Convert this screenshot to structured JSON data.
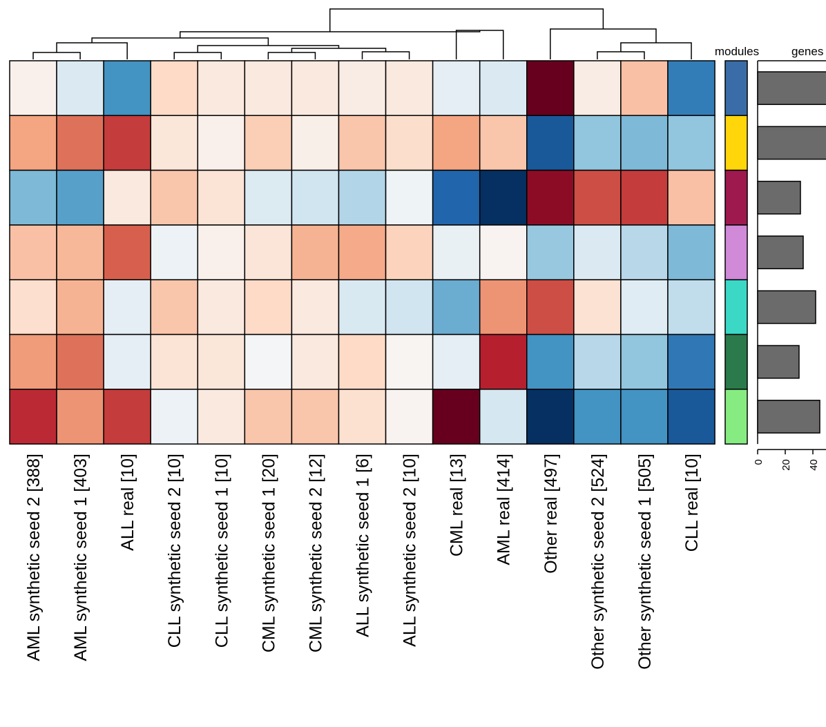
{
  "chart_data": {
    "type": "heatmap",
    "columns": [
      "AML synthetic seed 2  [388]",
      "AML synthetic seed 1  [403]",
      "ALL real  [10]",
      "CLL synthetic seed 2  [10]",
      "CLL synthetic seed 1  [10]",
      "CML synthetic seed 1  [20]",
      "CML synthetic seed 2  [12]",
      "ALL synthetic seed 1  [6]",
      "ALL synthetic seed 2  [10]",
      "CML real  [13]",
      "AML real  [414]",
      "Other real  [497]",
      "Other synthetic seed 2  [524]",
      "Other synthetic seed 1  [505]",
      "CLL real  [10]"
    ],
    "rows": [
      {
        "module_color": "#3A6DA8",
        "gene_count": 51,
        "values": [
          0.05,
          -0.15,
          -0.6,
          0.2,
          0.1,
          0.1,
          0.1,
          0.08,
          0.1,
          -0.1,
          -0.15,
          1.0,
          0.08,
          0.3,
          -0.7
        ]
      },
      {
        "module_color": "#FFD60A",
        "gene_count": 52,
        "values": [
          0.4,
          0.55,
          0.7,
          0.12,
          0.05,
          0.25,
          0.06,
          0.28,
          0.18,
          0.4,
          0.28,
          -0.85,
          -0.4,
          -0.45,
          -0.4
        ]
      },
      {
        "module_color": "#9E1A4E",
        "gene_count": 31,
        "values": [
          -0.45,
          -0.55,
          0.1,
          0.28,
          0.14,
          -0.14,
          -0.2,
          -0.3,
          -0.05,
          -0.8,
          -1.0,
          0.9,
          0.65,
          0.7,
          0.3
        ]
      },
      {
        "module_color": "#D08AD8",
        "gene_count": 33,
        "values": [
          0.3,
          0.33,
          0.6,
          -0.06,
          0.05,
          0.13,
          0.35,
          0.38,
          0.23,
          -0.08,
          0.03,
          -0.38,
          -0.15,
          -0.28,
          -0.45
        ]
      },
      {
        "module_color": "#3BD8C6",
        "gene_count": 42,
        "values": [
          0.17,
          0.35,
          -0.1,
          0.28,
          0.1,
          0.2,
          0.1,
          -0.16,
          -0.2,
          -0.5,
          0.45,
          0.65,
          0.15,
          -0.12,
          -0.25
        ]
      },
      {
        "module_color": "#2A7A4B",
        "gene_count": 30,
        "values": [
          0.43,
          0.55,
          -0.1,
          0.14,
          0.12,
          -0.02,
          0.1,
          0.2,
          0.02,
          -0.1,
          0.78,
          -0.6,
          -0.28,
          -0.4,
          -0.72
        ]
      },
      {
        "module_color": "#86EC82",
        "gene_count": 45,
        "values": [
          0.75,
          0.45,
          0.7,
          -0.06,
          0.1,
          0.28,
          0.28,
          0.16,
          0.03,
          1.0,
          -0.18,
          -1.0,
          -0.6,
          -0.6,
          -0.85
        ]
      }
    ],
    "color_range": [
      -1,
      1
    ],
    "palette": [
      "#053061",
      "#2166AC",
      "#4393C3",
      "#92C5DE",
      "#D1E5F0",
      "#F7F7F7",
      "#FDDBC7",
      "#F4A582",
      "#D6604D",
      "#B2182B",
      "#67001F"
    ],
    "annotation_labels": {
      "modules": "modules",
      "genes": "genes"
    },
    "gene_axis": {
      "ticks": [
        0,
        20,
        40
      ],
      "range": [
        0,
        52
      ]
    },
    "dendrogram": "hierarchical clustering of columns"
  }
}
